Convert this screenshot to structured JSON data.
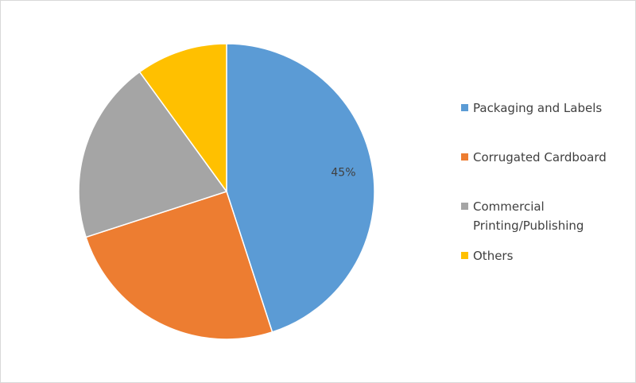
{
  "chart_data": {
    "type": "pie",
    "categories": [
      "Packaging and Labels",
      "Corrugated Cardboard",
      "Commercial Printing/Publishing",
      "Others"
    ],
    "values": [
      45,
      25,
      20,
      10
    ],
    "value_labels": [
      "45%",
      null,
      null,
      null
    ],
    "colors": [
      "#5b9bd5",
      "#ed7d31",
      "#a5a5a5",
      "#ffc000"
    ],
    "legend": "right"
  }
}
